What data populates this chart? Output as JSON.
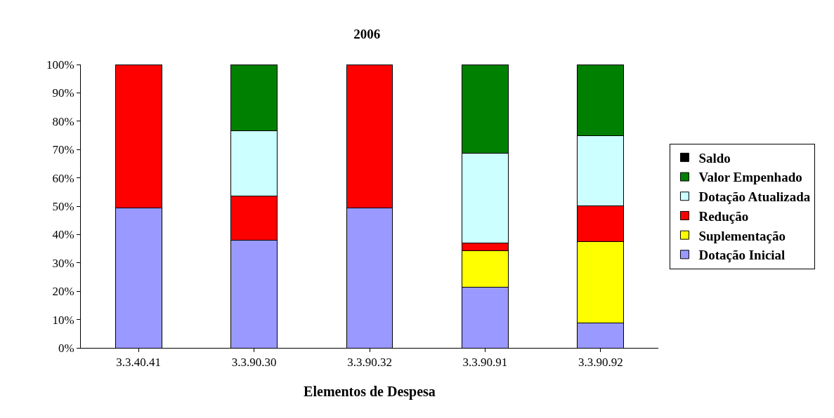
{
  "chart_data": {
    "type": "bar",
    "title": "2006",
    "xlabel": "Elementos de Despesa",
    "stacked": true,
    "grid": false,
    "legend": "right",
    "categories": [
      "3.3.40.41",
      "3.3.90.30",
      "3.3.90.32",
      "3.3.90.91",
      "3.3.90.92"
    ],
    "series": [
      {
        "name": "Dotação Inicial",
        "color": "#9999ff",
        "values": [
          49.5,
          38,
          49.5,
          21.3,
          8.7
        ]
      },
      {
        "name": "Suplementação",
        "color": "#ffff00",
        "values": [
          0,
          0,
          0,
          13.1,
          28.9
        ]
      },
      {
        "name": "Redução",
        "color": "#ff0000",
        "values": [
          50.5,
          15.5,
          50.5,
          2.5,
          12.5
        ]
      },
      {
        "name": "Dotação Atualizada",
        "color": "#ccffff",
        "values": [
          0,
          23.2,
          0,
          31.7,
          24.9
        ]
      },
      {
        "name": "Valor Empenhado",
        "color": "#008000",
        "values": [
          0,
          23.3,
          0,
          31.4,
          25
        ]
      },
      {
        "name": "Saldo",
        "color": "#000000",
        "values": [
          0,
          0,
          0,
          0,
          0
        ]
      }
    ],
    "ylim": [
      0,
      100
    ],
    "yticks": [
      {
        "value": 0,
        "label": "0%"
      },
      {
        "value": 10,
        "label": "10%"
      },
      {
        "value": 20,
        "label": "20%"
      },
      {
        "value": 30,
        "label": "30%"
      },
      {
        "value": 40,
        "label": "40%"
      },
      {
        "value": 50,
        "label": "50%"
      },
      {
        "value": 60,
        "label": "60%"
      },
      {
        "value": 70,
        "label": "70%"
      },
      {
        "value": 80,
        "label": "80%"
      },
      {
        "value": 90,
        "label": "90%"
      },
      {
        "value": 100,
        "label": "100%"
      }
    ]
  }
}
